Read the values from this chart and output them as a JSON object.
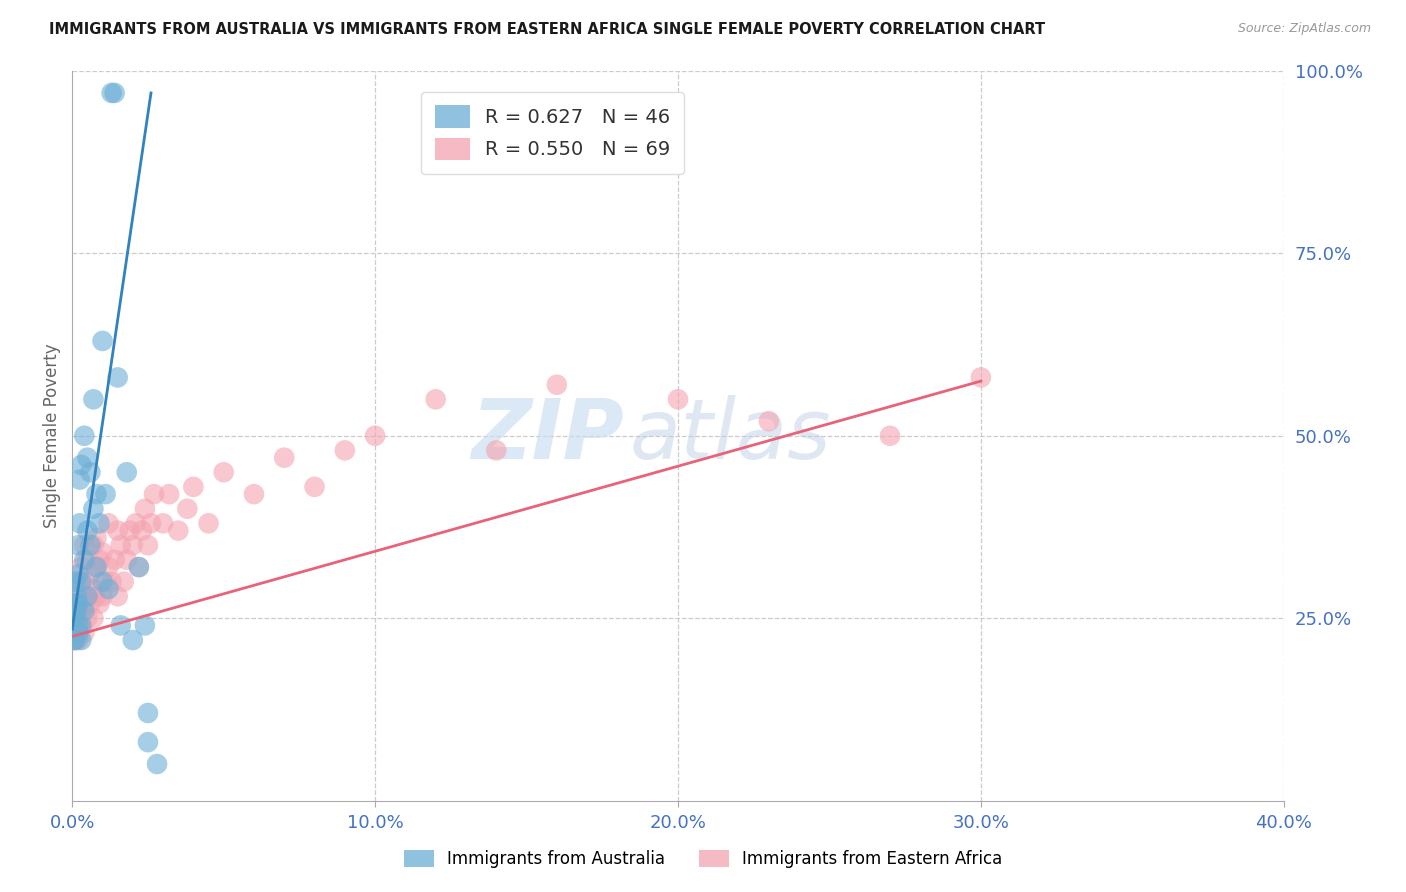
{
  "title": "IMMIGRANTS FROM AUSTRALIA VS IMMIGRANTS FROM EASTERN AFRICA SINGLE FEMALE POVERTY CORRELATION CHART",
  "source": "Source: ZipAtlas.com",
  "ylabel": "Single Female Poverty",
  "xlim": [
    0.0,
    0.4
  ],
  "ylim": [
    0.0,
    1.0
  ],
  "xtick_labels": [
    "0.0%",
    "10.0%",
    "20.0%",
    "30.0%",
    "40.0%"
  ],
  "xtick_vals": [
    0.0,
    0.1,
    0.2,
    0.3,
    0.4
  ],
  "ytick_labels": [
    "100.0%",
    "75.0%",
    "50.0%",
    "25.0%"
  ],
  "ytick_vals": [
    1.0,
    0.75,
    0.5,
    0.25
  ],
  "australia_R": 0.627,
  "australia_N": 46,
  "eastern_africa_R": 0.55,
  "eastern_africa_N": 69,
  "australia_color": "#6baed6",
  "eastern_africa_color": "#f4a3b0",
  "australia_line_color": "#3182bd",
  "eastern_africa_line_color": "#e8637a",
  "watermark_zip": "ZIP",
  "watermark_atlas": "atlas",
  "legend_label_australia": "Immigrants from Australia",
  "legend_label_eastern_africa": "Immigrants from Eastern Africa",
  "australia_scatter_x": [
    0.0005,
    0.001,
    0.001,
    0.001,
    0.001,
    0.0015,
    0.0015,
    0.002,
    0.002,
    0.002,
    0.002,
    0.002,
    0.0025,
    0.0025,
    0.003,
    0.003,
    0.003,
    0.003,
    0.004,
    0.004,
    0.004,
    0.005,
    0.005,
    0.005,
    0.006,
    0.006,
    0.007,
    0.007,
    0.008,
    0.008,
    0.009,
    0.01,
    0.01,
    0.011,
    0.012,
    0.013,
    0.014,
    0.015,
    0.016,
    0.018,
    0.02,
    0.022,
    0.024,
    0.025,
    0.025,
    0.028
  ],
  "australia_scatter_y": [
    0.22,
    0.25,
    0.27,
    0.3,
    0.22,
    0.26,
    0.28,
    0.23,
    0.24,
    0.27,
    0.31,
    0.35,
    0.38,
    0.44,
    0.22,
    0.24,
    0.3,
    0.46,
    0.26,
    0.33,
    0.5,
    0.28,
    0.37,
    0.47,
    0.35,
    0.45,
    0.4,
    0.55,
    0.32,
    0.42,
    0.38,
    0.3,
    0.63,
    0.42,
    0.29,
    0.97,
    0.97,
    0.58,
    0.24,
    0.45,
    0.22,
    0.32,
    0.24,
    0.12,
    0.08,
    0.05
  ],
  "eastern_africa_scatter_x": [
    0.001,
    0.001,
    0.001,
    0.002,
    0.002,
    0.002,
    0.002,
    0.002,
    0.003,
    0.003,
    0.003,
    0.003,
    0.004,
    0.004,
    0.004,
    0.004,
    0.005,
    0.005,
    0.005,
    0.006,
    0.006,
    0.007,
    0.007,
    0.007,
    0.008,
    0.008,
    0.008,
    0.009,
    0.009,
    0.01,
    0.01,
    0.011,
    0.012,
    0.012,
    0.013,
    0.014,
    0.015,
    0.015,
    0.016,
    0.017,
    0.018,
    0.019,
    0.02,
    0.021,
    0.022,
    0.023,
    0.024,
    0.025,
    0.026,
    0.027,
    0.03,
    0.032,
    0.035,
    0.038,
    0.04,
    0.045,
    0.05,
    0.06,
    0.07,
    0.08,
    0.09,
    0.1,
    0.12,
    0.14,
    0.16,
    0.2,
    0.23,
    0.27,
    0.3
  ],
  "eastern_africa_scatter_y": [
    0.22,
    0.25,
    0.27,
    0.23,
    0.25,
    0.27,
    0.3,
    0.22,
    0.24,
    0.26,
    0.29,
    0.32,
    0.23,
    0.27,
    0.3,
    0.35,
    0.25,
    0.28,
    0.33,
    0.27,
    0.31,
    0.25,
    0.29,
    0.35,
    0.28,
    0.32,
    0.36,
    0.27,
    0.33,
    0.28,
    0.34,
    0.3,
    0.32,
    0.38,
    0.3,
    0.33,
    0.28,
    0.37,
    0.35,
    0.3,
    0.33,
    0.37,
    0.35,
    0.38,
    0.32,
    0.37,
    0.4,
    0.35,
    0.38,
    0.42,
    0.38,
    0.42,
    0.37,
    0.4,
    0.43,
    0.38,
    0.45,
    0.42,
    0.47,
    0.43,
    0.48,
    0.5,
    0.55,
    0.48,
    0.57,
    0.55,
    0.52,
    0.5,
    0.58
  ],
  "aus_line_x": [
    0.0,
    0.026
  ],
  "aus_line_y": [
    0.235,
    0.97
  ],
  "ea_line_x": [
    0.0,
    0.3
  ],
  "ea_line_y": [
    0.225,
    0.575
  ]
}
